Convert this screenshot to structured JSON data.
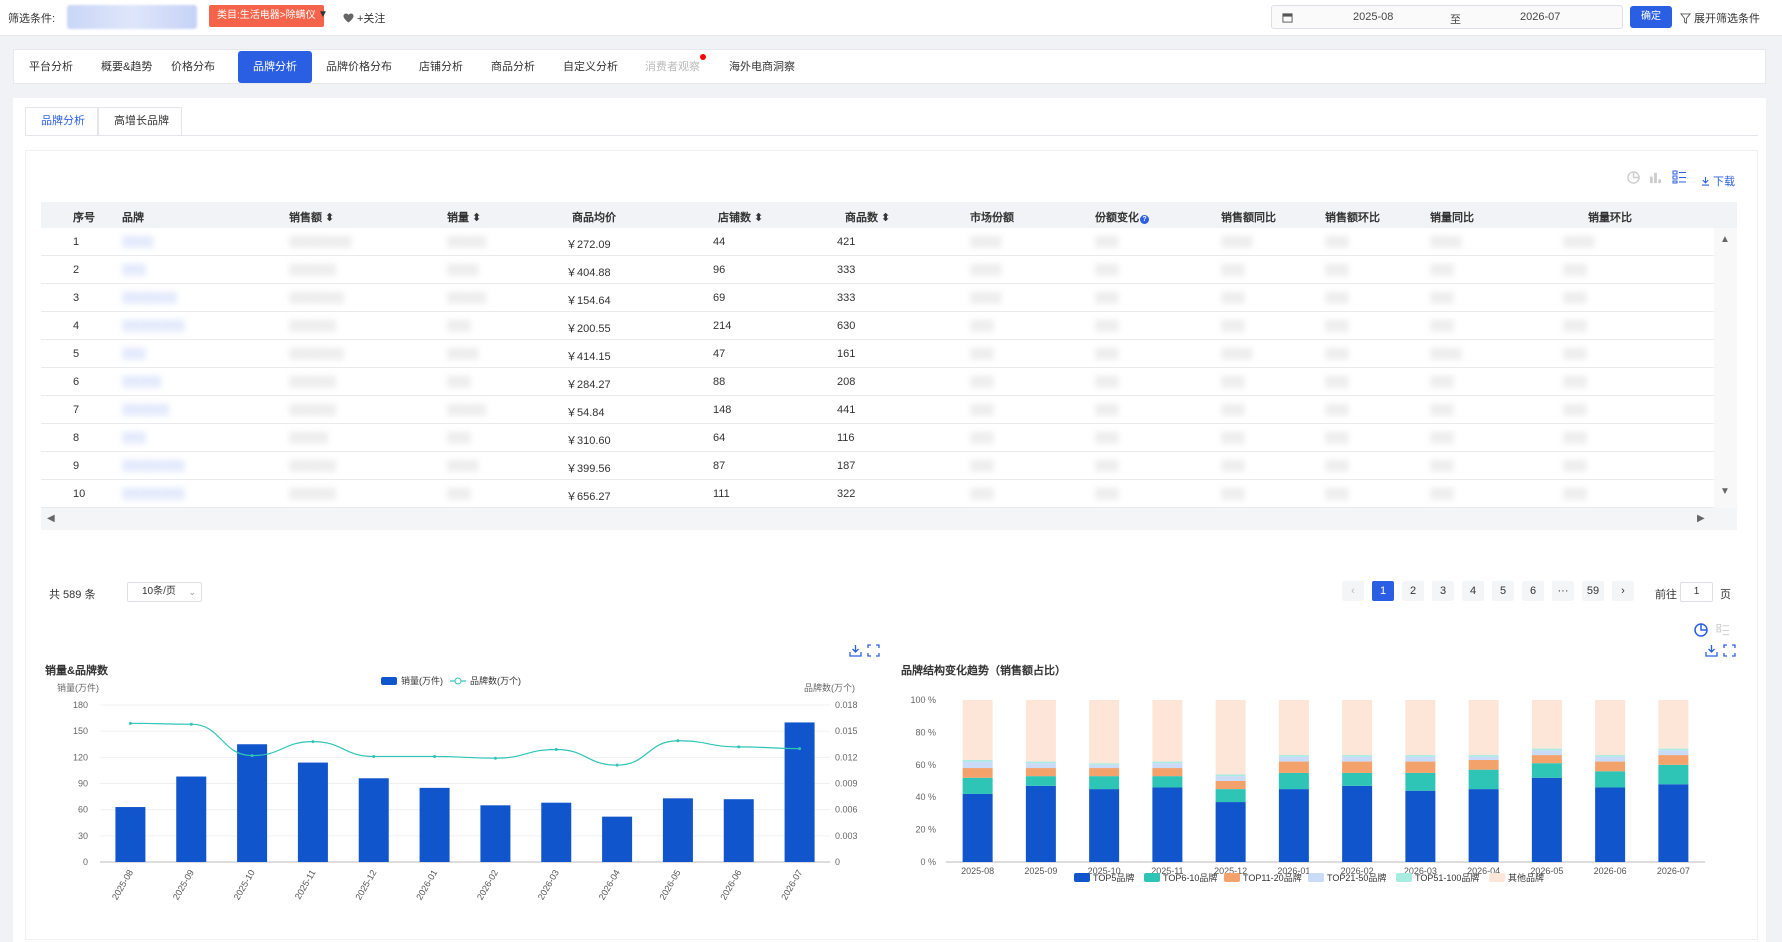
{
  "filter_bar": {
    "label": "筛选条件:",
    "category_tag": "类目:生活电器>除螨仪",
    "follow_label": "+关注",
    "date_from": "2025-08",
    "date_to_sep": "至",
    "date_to": "2026-07",
    "confirm_label": "确定",
    "expand_label": "展开筛选条件"
  },
  "main_tabs": [
    "平台分析",
    "概要&趋势",
    "价格分布",
    "品牌分析",
    "品牌价格分布",
    "店铺分析",
    "商品分析",
    "自定义分析",
    "消费者观察",
    "海外电商洞察"
  ],
  "main_tab_active": "品牌分析",
  "sub_tabs": [
    "品牌分析",
    "高增长品牌"
  ],
  "toolbar": {
    "download_label": "下载"
  },
  "table": {
    "headers": [
      "序号",
      "品牌",
      "销售额",
      "销量",
      "商品均价",
      "店铺数",
      "商品数",
      "市场份额",
      "份额变化",
      "销售额同比",
      "销售额环比",
      "销量同比",
      "销量环比"
    ],
    "rows": [
      {
        "idx": "1",
        "brand": "░░░░",
        "sales": "░░░░░░░░",
        "vol": "░░░░░",
        "avg": "￥272.09",
        "shops": "44",
        "items": "421",
        "share": "░░░░",
        "chg": "░░░",
        "yoy": "░░░░",
        "mom": "░░░",
        "vyoy": "░░░░",
        "vmom": "░░░░"
      },
      {
        "idx": "2",
        "brand": "░░░",
        "sales": "░░░░░░",
        "vol": "░░░░",
        "avg": "￥404.88",
        "shops": "96",
        "items": "333",
        "share": "░░░░",
        "chg": "░░░",
        "yoy": "░░░",
        "mom": "░░░",
        "vyoy": "░░░",
        "vmom": "░░░"
      },
      {
        "idx": "3",
        "brand": "░░░░░░░",
        "sales": "░░░░░░░",
        "vol": "░░░░░",
        "avg": "￥154.64",
        "shops": "69",
        "items": "333",
        "share": "░░░░",
        "chg": "░░░",
        "yoy": "░░░",
        "mom": "░░░",
        "vyoy": "░░░",
        "vmom": "░░░"
      },
      {
        "idx": "4",
        "brand": "░░░░░░░░",
        "sales": "░░░░░░",
        "vol": "░░░",
        "avg": "￥200.55",
        "shops": "214",
        "items": "630",
        "share": "░░░",
        "chg": "░░░",
        "yoy": "░░░",
        "mom": "░░░",
        "vyoy": "░░░",
        "vmom": "░░░"
      },
      {
        "idx": "5",
        "brand": "░░░",
        "sales": "░░░░░░░",
        "vol": "░░░░",
        "avg": "￥414.15",
        "shops": "47",
        "items": "161",
        "share": "░░░",
        "chg": "░░░",
        "yoy": "░░░░",
        "mom": "░░░",
        "vyoy": "░░░░",
        "vmom": "░░░"
      },
      {
        "idx": "6",
        "brand": "░░░░░",
        "sales": "░░░░░░",
        "vol": "░░░",
        "avg": "￥284.27",
        "shops": "88",
        "items": "208",
        "share": "░░░",
        "chg": "░░░",
        "yoy": "░░░",
        "mom": "░░░",
        "vyoy": "░░░",
        "vmom": "░░░"
      },
      {
        "idx": "7",
        "brand": "░░░░░░",
        "sales": "░░░░░░",
        "vol": "░░░░░",
        "avg": "￥54.84",
        "shops": "148",
        "items": "441",
        "share": "░░░",
        "chg": "░░░",
        "yoy": "░░░",
        "mom": "░░░",
        "vyoy": "░░░",
        "vmom": "░░░"
      },
      {
        "idx": "8",
        "brand": "░░░",
        "sales": "░░░░░",
        "vol": "░░░",
        "avg": "￥310.60",
        "shops": "64",
        "items": "116",
        "share": "░░░",
        "chg": "░░░",
        "yoy": "░░░",
        "mom": "░░░",
        "vyoy": "░░░",
        "vmom": "░░░"
      },
      {
        "idx": "9",
        "brand": "░░░░░░░░",
        "sales": "░░░░░░",
        "vol": "░░░░",
        "avg": "￥399.56",
        "shops": "87",
        "items": "187",
        "share": "░░░",
        "chg": "░░░",
        "yoy": "░░░",
        "mom": "░░░",
        "vyoy": "░░░",
        "vmom": "░░░"
      },
      {
        "idx": "10",
        "brand": "░░░░░░░░",
        "sales": "░░░░░░",
        "vol": "░░░",
        "avg": "￥656.27",
        "shops": "111",
        "items": "322",
        "share": "░░░",
        "chg": "░░░",
        "yoy": "░░░",
        "mom": "░░░",
        "vyoy": "░░░",
        "vmom": "░░░"
      }
    ]
  },
  "pagination": {
    "total_label": "共 589 条",
    "page_size": "10条/页",
    "pages": [
      "1",
      "2",
      "3",
      "4",
      "5",
      "6",
      "···",
      "59"
    ],
    "active_page": "1",
    "goto_label": "前往",
    "goto_value": "1",
    "page_suffix": "页"
  },
  "chart_data": [
    {
      "type": "bar",
      "title": "销量&品牌数",
      "categories": [
        "2025-08",
        "2025-09",
        "2025-10",
        "2025-11",
        "2025-12",
        "2026-01",
        "2026-02",
        "2026-03",
        "2026-04",
        "2026-05",
        "2026-06",
        "2026-07"
      ],
      "series": [
        {
          "name": "销量(万件)",
          "type": "bar",
          "axis": "left",
          "values": [
            63,
            98,
            135,
            114,
            96,
            85,
            65,
            68,
            52,
            73,
            72,
            160
          ]
        },
        {
          "name": "品牌数(万个)",
          "type": "line",
          "axis": "right",
          "values": [
            0.0159,
            0.0158,
            0.0122,
            0.0138,
            0.0121,
            0.0121,
            0.0119,
            0.0129,
            0.0111,
            0.0139,
            0.0132,
            0.013
          ]
        }
      ],
      "ylabel": "销量(万件)",
      "ylabel_right": "品牌数(万个)",
      "ylim": [
        0,
        180
      ],
      "ylim_right": [
        0,
        0.018
      ],
      "yticks": [
        "180",
        "150",
        "120",
        "90",
        "60",
        "30",
        "0"
      ],
      "yticks_right": [
        "0.018",
        "0.015",
        "0.012",
        "0.009",
        "0.006",
        "0.003",
        "0"
      ],
      "colors": {
        "bar": "#1155cc",
        "line": "#2ec4b6"
      }
    },
    {
      "type": "bar",
      "stacked": true,
      "title": "品牌结构变化趋势（销售额占比）",
      "categories": [
        "2025-08",
        "2025-09",
        "2025-10",
        "2025-11",
        "2025-12",
        "2026-01",
        "2026-02",
        "2026-03",
        "2026-04",
        "2026-05",
        "2026-06",
        "2026-07"
      ],
      "series": [
        {
          "name": "TOP5品牌",
          "color": "#1155cc",
          "values": [
            42,
            47,
            45,
            46,
            37,
            45,
            47,
            44,
            45,
            52,
            46,
            48
          ]
        },
        {
          "name": "TOP6-10品牌",
          "color": "#2ec4b6",
          "values": [
            10,
            6,
            8,
            7,
            8,
            10,
            8,
            11,
            12,
            9,
            10,
            12
          ]
        },
        {
          "name": "TOP11-20品牌",
          "color": "#f4a26b",
          "values": [
            6,
            5,
            5,
            5,
            5,
            7,
            7,
            7,
            6,
            5,
            6,
            6
          ]
        },
        {
          "name": "TOP21-50品牌",
          "color": "#c9dbf6",
          "values": [
            4,
            3,
            2,
            3,
            3,
            3,
            3,
            3,
            2,
            3,
            3,
            3
          ]
        },
        {
          "name": "TOP51-100品牌",
          "color": "#a8ece1",
          "values": [
            1,
            1,
            1,
            1,
            1,
            1,
            1,
            1,
            1,
            1,
            1,
            1
          ]
        },
        {
          "name": "其他品牌",
          "color": "#fde6d8",
          "values": [
            37,
            38,
            39,
            38,
            46,
            34,
            34,
            34,
            34,
            30,
            34,
            30
          ]
        }
      ],
      "ylim": [
        0,
        100
      ],
      "yticks": [
        "100 %",
        "80 %",
        "60 %",
        "40 %",
        "20 %",
        "0 %"
      ]
    }
  ]
}
